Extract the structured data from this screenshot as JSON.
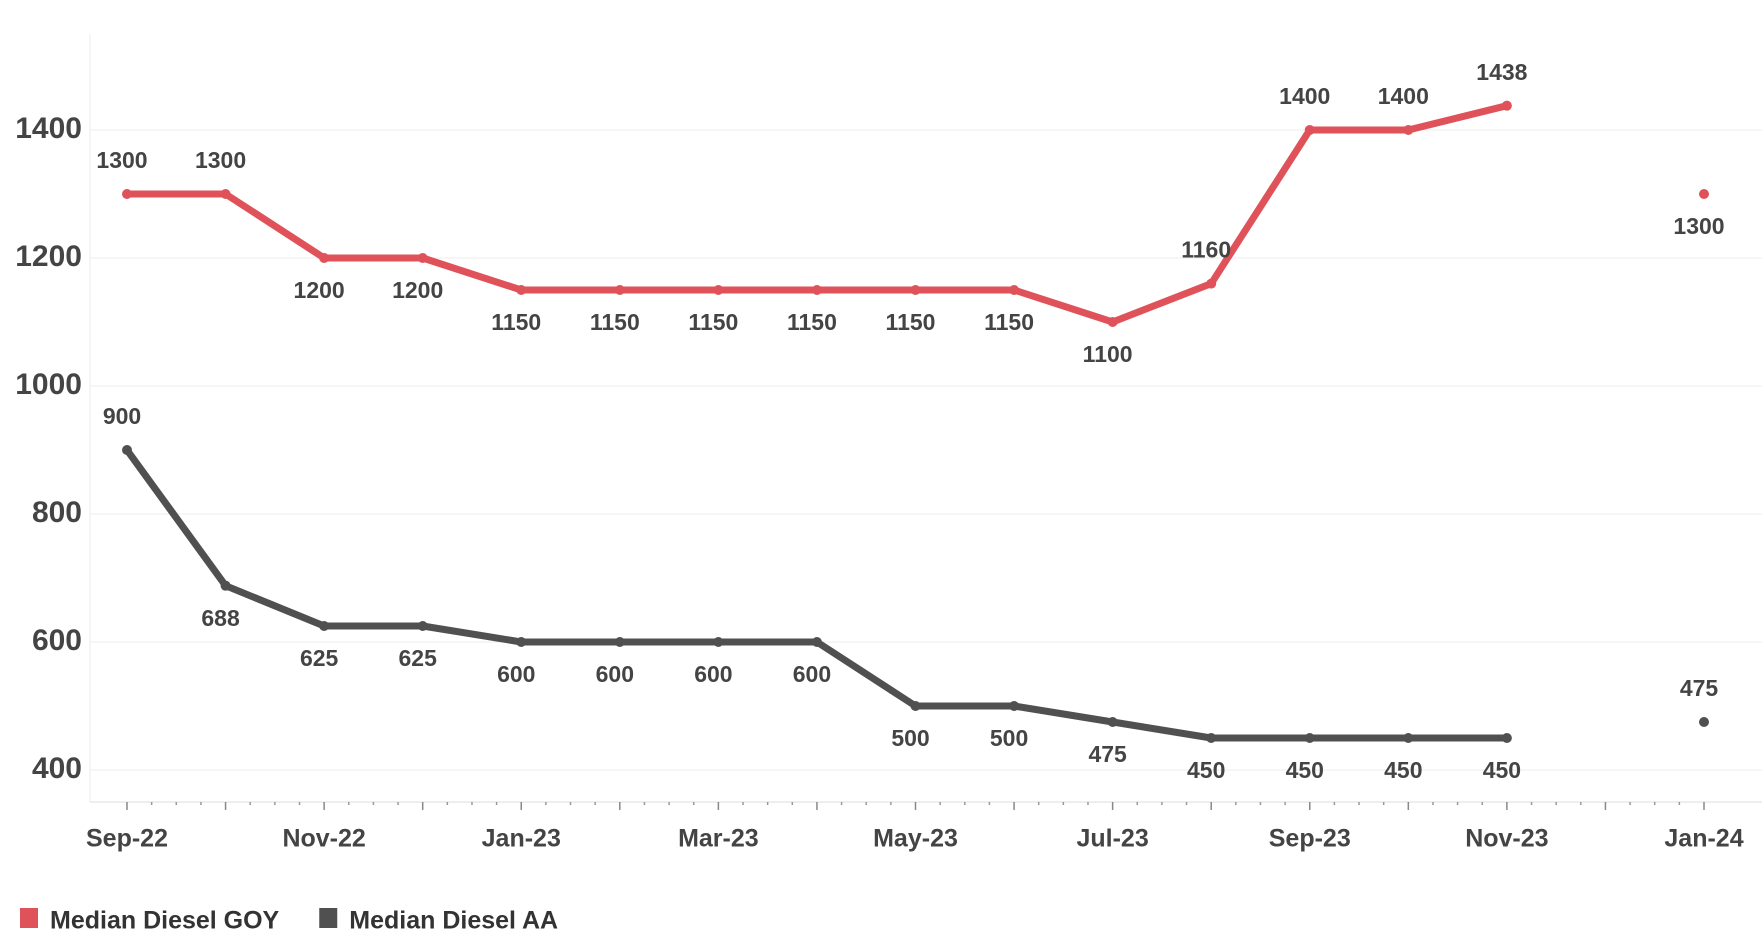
{
  "chart_data": {
    "type": "line",
    "categories": [
      "Sep-22",
      null,
      "Nov-22",
      null,
      "Jan-23",
      null,
      "Mar-23",
      null,
      "May-23",
      null,
      "Jul-23",
      null,
      "Sep-23",
      null,
      "Nov-23",
      null,
      "Jan-24"
    ],
    "series": [
      {
        "name": "Median Diesel GOY",
        "color": "#e05259",
        "values": [
          1300,
          1300,
          1200,
          1200,
          1150,
          1150,
          1150,
          1150,
          1150,
          1150,
          1100,
          1160,
          1400,
          1400,
          1438,
          null,
          1300
        ]
      },
      {
        "name": "Median Diesel AA",
        "color": "#505050",
        "values": [
          900,
          688,
          625,
          625,
          600,
          600,
          600,
          600,
          500,
          500,
          475,
          450,
          450,
          450,
          450,
          null,
          475
        ]
      }
    ],
    "ylim": [
      350,
      1550
    ],
    "yticks": [
      400,
      600,
      800,
      1000,
      1200,
      1400
    ],
    "grid": true,
    "legend": "bottom-left"
  }
}
